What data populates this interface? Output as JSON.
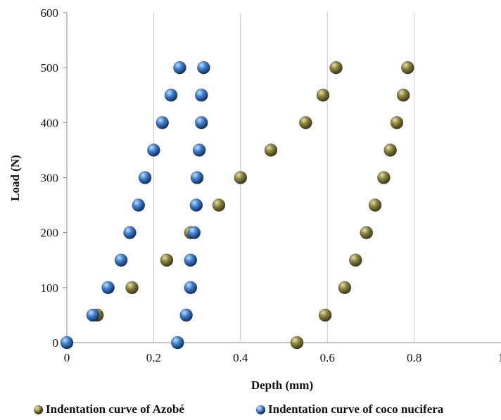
{
  "chart_data": {
    "type": "scatter",
    "xlabel": "Depth (mm)",
    "ylabel": "Load (N)",
    "xlim": [
      0,
      1
    ],
    "ylim": [
      0,
      600
    ],
    "x_ticks": [
      "0",
      "0.2",
      "0.4",
      "0.6",
      "0.8",
      "1"
    ],
    "y_ticks": [
      "0",
      "100",
      "200",
      "300",
      "400",
      "500",
      "600"
    ],
    "grid": "vertical",
    "legend_position": "bottom",
    "series": [
      {
        "name": "Indentation curve of Azobé",
        "color": "#7a7338",
        "points": [
          {
            "x": 0.53,
            "y": 0
          },
          {
            "x": 0.07,
            "y": 50
          },
          {
            "x": 0.15,
            "y": 100
          },
          {
            "x": 0.23,
            "y": 150
          },
          {
            "x": 0.285,
            "y": 200
          },
          {
            "x": 0.35,
            "y": 250
          },
          {
            "x": 0.4,
            "y": 300
          },
          {
            "x": 0.47,
            "y": 350
          },
          {
            "x": 0.55,
            "y": 400
          },
          {
            "x": 0.59,
            "y": 450
          },
          {
            "x": 0.62,
            "y": 500
          },
          {
            "x": 0.785,
            "y": 500
          },
          {
            "x": 0.775,
            "y": 450
          },
          {
            "x": 0.76,
            "y": 400
          },
          {
            "x": 0.745,
            "y": 350
          },
          {
            "x": 0.73,
            "y": 300
          },
          {
            "x": 0.71,
            "y": 250
          },
          {
            "x": 0.69,
            "y": 200
          },
          {
            "x": 0.665,
            "y": 150
          },
          {
            "x": 0.64,
            "y": 100
          },
          {
            "x": 0.595,
            "y": 50
          }
        ]
      },
      {
        "name": "Indentation curve of coco nucifera",
        "color": "#3a74c0",
        "points": [
          {
            "x": 0.0,
            "y": 0
          },
          {
            "x": 0.06,
            "y": 50
          },
          {
            "x": 0.095,
            "y": 100
          },
          {
            "x": 0.125,
            "y": 150
          },
          {
            "x": 0.145,
            "y": 200
          },
          {
            "x": 0.165,
            "y": 250
          },
          {
            "x": 0.18,
            "y": 300
          },
          {
            "x": 0.2,
            "y": 350
          },
          {
            "x": 0.22,
            "y": 400
          },
          {
            "x": 0.24,
            "y": 450
          },
          {
            "x": 0.26,
            "y": 500
          },
          {
            "x": 0.315,
            "y": 500
          },
          {
            "x": 0.31,
            "y": 450
          },
          {
            "x": 0.31,
            "y": 400
          },
          {
            "x": 0.305,
            "y": 350
          },
          {
            "x": 0.3,
            "y": 300
          },
          {
            "x": 0.298,
            "y": 250
          },
          {
            "x": 0.293,
            "y": 200
          },
          {
            "x": 0.285,
            "y": 150
          },
          {
            "x": 0.285,
            "y": 100
          },
          {
            "x": 0.275,
            "y": 50
          },
          {
            "x": 0.255,
            "y": 0
          }
        ]
      }
    ]
  }
}
